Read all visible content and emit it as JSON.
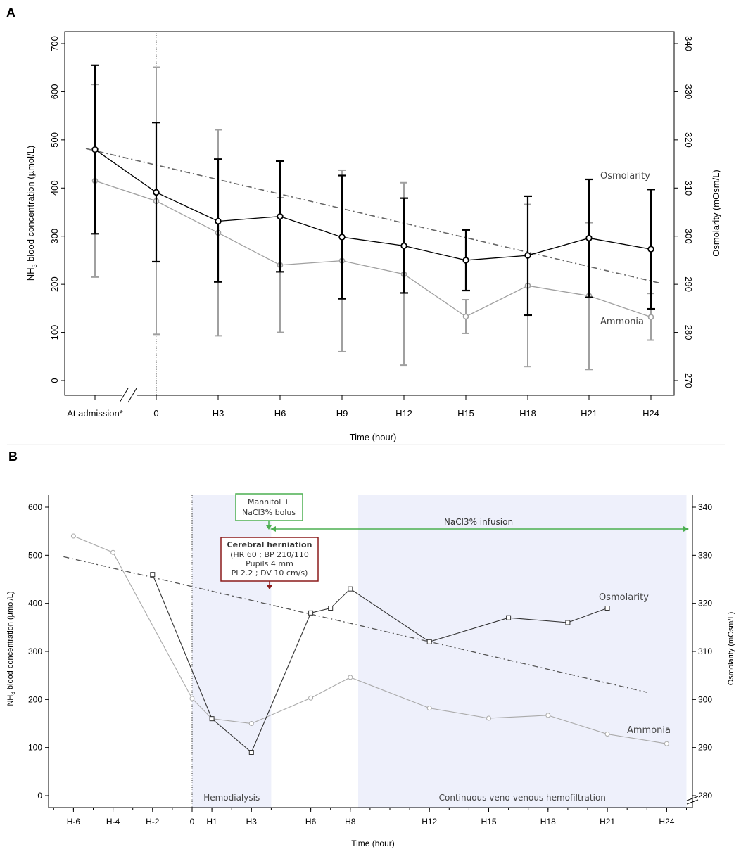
{
  "panel_labels": {
    "a": "A",
    "b": "B"
  },
  "chart_data": [
    {
      "type": "line",
      "panel": "A",
      "x_categories": [
        "At admission*",
        "0",
        "H3",
        "H6",
        "H9",
        "H12",
        "H15",
        "H18",
        "H21",
        "H24"
      ],
      "xlabel": "Time (hour)",
      "ylabel_left_prefix": "NH",
      "ylabel_left_sub": "3",
      "ylabel_left_suffix": " blood concentration (µmol/L)",
      "ylabel_right": "Osmolarity (mOsm/L)",
      "yticks_left": [
        "0",
        "100",
        "200",
        "300",
        "400",
        "500",
        "600",
        "700"
      ],
      "yticks_right": [
        "270",
        "280",
        "290",
        "300",
        "310",
        "320",
        "330",
        "340"
      ],
      "ylim_left": [
        0,
        700
      ],
      "ylim_right": [
        270,
        340
      ],
      "series": [
        {
          "name": "Osmolarity",
          "axis": "right",
          "color": "#000000",
          "values": [
            318,
            309.1,
            303.1,
            304.1,
            299.8,
            298,
            295,
            296,
            299.6,
            297.3
          ],
          "err_low": [
            300.5,
            294.7,
            290.5,
            292.6,
            287,
            288.2,
            288.7,
            283.6,
            287.3,
            284.9
          ],
          "err_high": [
            335.5,
            323.6,
            316,
            315.6,
            312.6,
            307.9,
            301.3,
            308.3,
            311.8,
            309.7
          ]
        },
        {
          "name": "Ammonia",
          "axis": "left",
          "color": "#a0a0a0",
          "values": [
            415,
            373,
            307,
            240,
            249,
            221,
            133,
            197,
            176,
            132
          ],
          "err_low": [
            215,
            96,
            93,
            100,
            60,
            32,
            98,
            29,
            23,
            84
          ],
          "err_high": [
            615,
            651,
            521,
            380,
            437,
            411,
            168,
            366,
            328,
            181
          ]
        }
      ],
      "trend": {
        "axis": "right",
        "from": 318.2,
        "to": 290.3
      },
      "annotations": {
        "osmolarity": "Osmolarity",
        "ammonia": "Ammonia"
      }
    },
    {
      "type": "line",
      "panel": "B",
      "x_ticks": [
        "H-6",
        "H-4",
        "H-2",
        "0",
        "H1",
        "H3",
        "H6",
        "H8",
        "H12",
        "H15",
        "H18",
        "H21",
        "H24"
      ],
      "x_tick_hours": [
        -6,
        -4,
        -2,
        0,
        1,
        3,
        6,
        8,
        12,
        15,
        18,
        21,
        24
      ],
      "xlabel": "Time (hour)",
      "ylabel_left_prefix": "NH",
      "ylabel_left_sub": "3",
      "ylabel_left_suffix": " blood concentration (µmol/L)",
      "ylabel_right": "Osmolarity (mOsm/L)",
      "yticks_left": [
        "0",
        "100",
        "200",
        "300",
        "400",
        "500",
        "600"
      ],
      "yticks_right": [
        "280",
        "290",
        "300",
        "310",
        "320",
        "330",
        "340"
      ],
      "ylim_left": [
        0,
        600
      ],
      "ylim_right": [
        280,
        340
      ],
      "ammonia": {
        "name": "Ammonia",
        "color": "#aaaaaa",
        "x": [
          -6,
          -4,
          0,
          1,
          3,
          6,
          8,
          12,
          15,
          18,
          21,
          24
        ],
        "values": [
          540,
          506,
          202,
          160,
          150,
          203,
          246,
          182,
          161,
          167,
          128,
          108
        ]
      },
      "osmolarity": {
        "name": "Osmolarity",
        "color": "#333333",
        "x": [
          -2,
          1,
          3,
          6,
          7,
          8,
          12,
          16,
          19,
          21
        ],
        "values": [
          326,
          296,
          289,
          318,
          319,
          323,
          312,
          317,
          316,
          319
        ]
      },
      "trend": {
        "axis": "right",
        "x_from": -6.5,
        "x_to": 23,
        "from": 329.7,
        "to": 301.5
      },
      "regions": [
        {
          "label": "Hemodialysis",
          "x_from": 0,
          "x_to": 4
        },
        {
          "label": "Continuous veno-venous hemofiltration",
          "x_from": 8.4,
          "x_to": 25
        }
      ],
      "events": {
        "bolus": {
          "line1": "Mannitol +",
          "line2": "NaCl3% bolus",
          "color": "#4caf50"
        },
        "infusion": {
          "label": "NaCl3% infusion",
          "color": "#4caf50"
        },
        "herniation": {
          "title": "Cerebral herniation",
          "line1": "(HR 60 ; BP 210/110",
          "line2": "Pupils 4 mm",
          "line3": "PI 2.2 ; DV 10 cm/s)",
          "color": "#8b1a1a"
        }
      },
      "annotations": {
        "osmolarity": "Osmolarity",
        "ammonia": "Ammonia"
      }
    }
  ]
}
